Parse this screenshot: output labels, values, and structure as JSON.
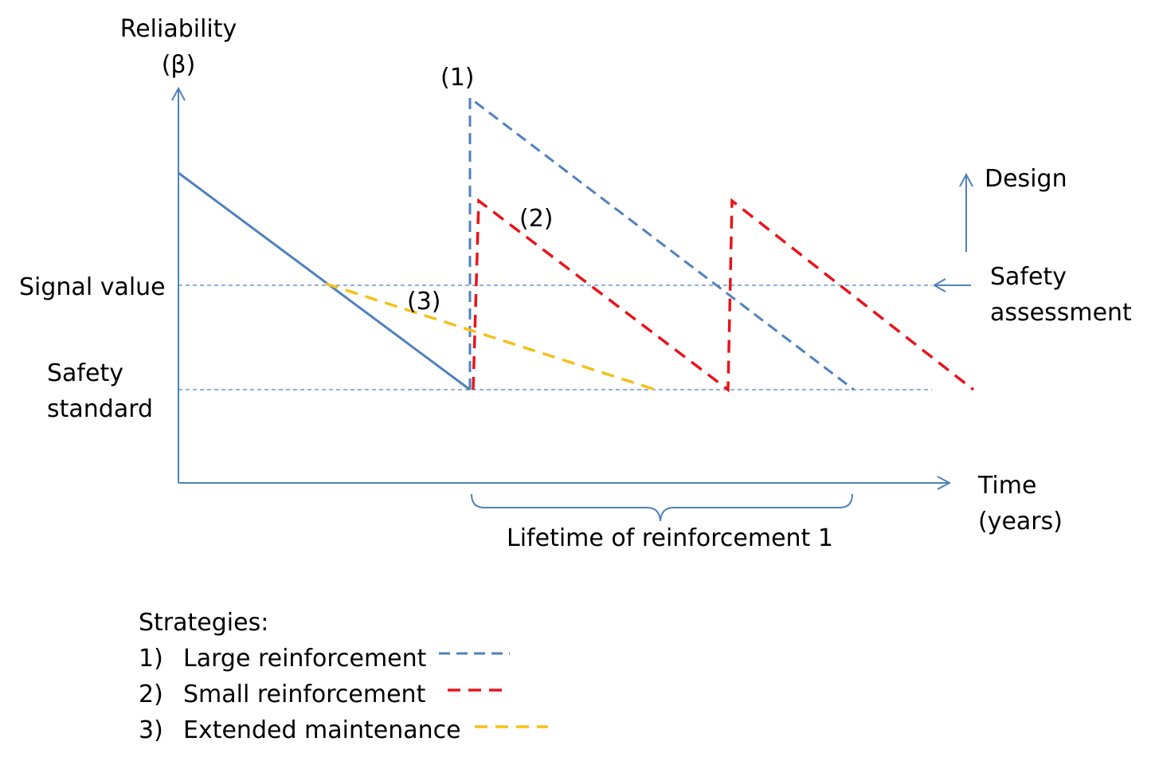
{
  "axes": {
    "y_label_line1": "Reliability",
    "y_label_line2": "(β)",
    "x_label_line1": "Time",
    "x_label_line2": "(years)"
  },
  "levels": {
    "signal_value": "Signal value",
    "safety_standard_line1": "Safety",
    "safety_standard_line2": "standard"
  },
  "markers": {
    "strategy1": "(1)",
    "strategy2": "(2)",
    "strategy3": "(3)"
  },
  "annotations": {
    "design": "Design",
    "safety_assessment_line1": "Safety",
    "safety_assessment_line2": "assessment",
    "lifetime": "Lifetime of reinforcement 1"
  },
  "legend": {
    "heading": "Strategies:",
    "items": [
      {
        "number": "1)",
        "label": "Large reinforcement",
        "color": "#4f81bd"
      },
      {
        "number": "2)",
        "label": "Small reinforcement",
        "color": "#e8141b"
      },
      {
        "number": "3)",
        "label": "Extended maintenance",
        "color": "#f5c01a"
      }
    ]
  },
  "colors": {
    "axis": "#4f81bd",
    "baseline": "#4f81bd",
    "strategy1": "#4f81bd",
    "strategy2": "#e8141b",
    "strategy3": "#f5c01a"
  }
}
